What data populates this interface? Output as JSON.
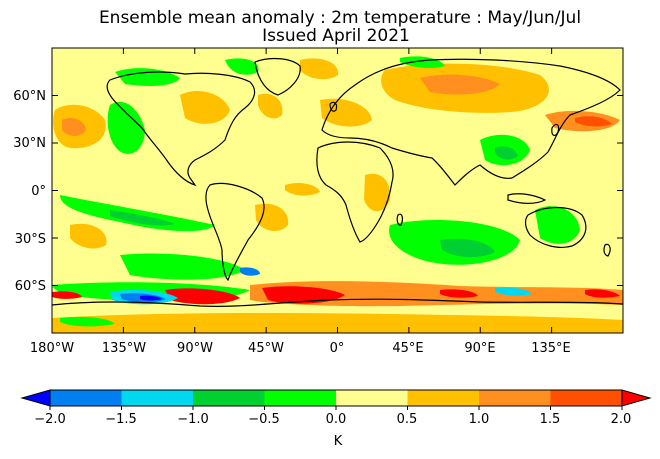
{
  "title_line1": "Ensemble mean anomaly : 2m temperature : May/Jun/Jul",
  "title_line2": "Issued April 2021",
  "lat_labels": [
    "60°N",
    "30°N",
    "0°",
    "30°S",
    "60°S"
  ],
  "lon_labels": [
    "180°W",
    "135°W",
    "90°W",
    "45°W",
    "0°",
    "45°E",
    "90°E",
    "135°E"
  ],
  "colorbar": {
    "ticks": [
      "−2.0",
      "−1.5",
      "−1.0",
      "−0.5",
      "0.0",
      "0.5",
      "1.0",
      "1.5",
      "2.0"
    ],
    "units": "K",
    "below_color": "#0000ff",
    "above_color": "#ff0000",
    "bins": [
      {
        "from": -2.0,
        "to": -1.5,
        "color": "#0080f0"
      },
      {
        "from": -1.5,
        "to": -1.0,
        "color": "#00d8f0"
      },
      {
        "from": -1.0,
        "to": -0.5,
        "color": "#00d030"
      },
      {
        "from": -0.5,
        "to": 0.0,
        "color": "#00ff00"
      },
      {
        "from": 0.0,
        "to": 0.5,
        "color": "#ffff90"
      },
      {
        "from": 0.5,
        "to": 1.0,
        "color": "#ffc000"
      },
      {
        "from": 1.0,
        "to": 1.5,
        "color": "#ff9020"
      },
      {
        "from": 1.5,
        "to": 2.0,
        "color": "#ff5000"
      }
    ]
  }
}
